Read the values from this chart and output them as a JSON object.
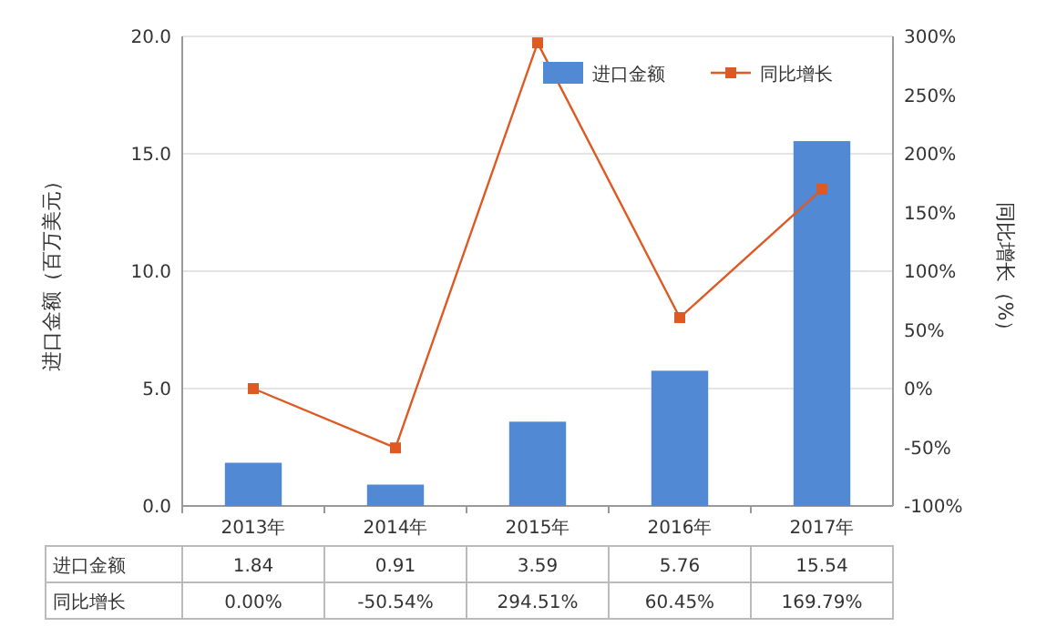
{
  "chart_data": {
    "type": "bar",
    "ylabel": "进口金额（百万美元）",
    "y2label": "同比增长（%）",
    "categories": [
      "2013年",
      "2014年",
      "2015年",
      "2016年",
      "2017年"
    ],
    "series": [
      {
        "name": "进口金额",
        "color": "#5189d4",
        "values": [
          1.84,
          0.91,
          3.59,
          5.76,
          15.54
        ],
        "value_labels": [
          "1.84",
          "0.91",
          "3.59",
          "5.76",
          "15.54"
        ]
      },
      {
        "name": "同比增长",
        "type": "line",
        "axis": "y2",
        "color": "#dd5a24",
        "marker": "square",
        "line_style": "solid",
        "values": [
          0,
          -50.54,
          294.51,
          60.45,
          169.79
        ],
        "value_labels": [
          "0.00%",
          "-50.54%",
          "294.51%",
          "60.45%",
          "169.79%"
        ]
      }
    ],
    "ylim": [
      0,
      20
    ],
    "yticks": [
      {
        "value": 0,
        "label": "0.0"
      },
      {
        "value": 5,
        "label": "5.0"
      },
      {
        "value": 10,
        "label": "10.0"
      },
      {
        "value": 15,
        "label": "15.0"
      },
      {
        "value": 20,
        "label": "20.0"
      }
    ],
    "y2lim": [
      -100,
      300
    ],
    "y2ticks": [
      {
        "value": -100,
        "label": "-100%"
      },
      {
        "value": -50,
        "label": "-50%"
      },
      {
        "value": 0,
        "label": "0%"
      },
      {
        "value": 50,
        "label": "50%"
      },
      {
        "value": 100,
        "label": "100%"
      },
      {
        "value": 150,
        "label": "150%"
      },
      {
        "value": 200,
        "label": "200%"
      },
      {
        "value": 250,
        "label": "250%"
      },
      {
        "value": 300,
        "label": "300%"
      }
    ],
    "grid": "y",
    "legend": "top right"
  }
}
